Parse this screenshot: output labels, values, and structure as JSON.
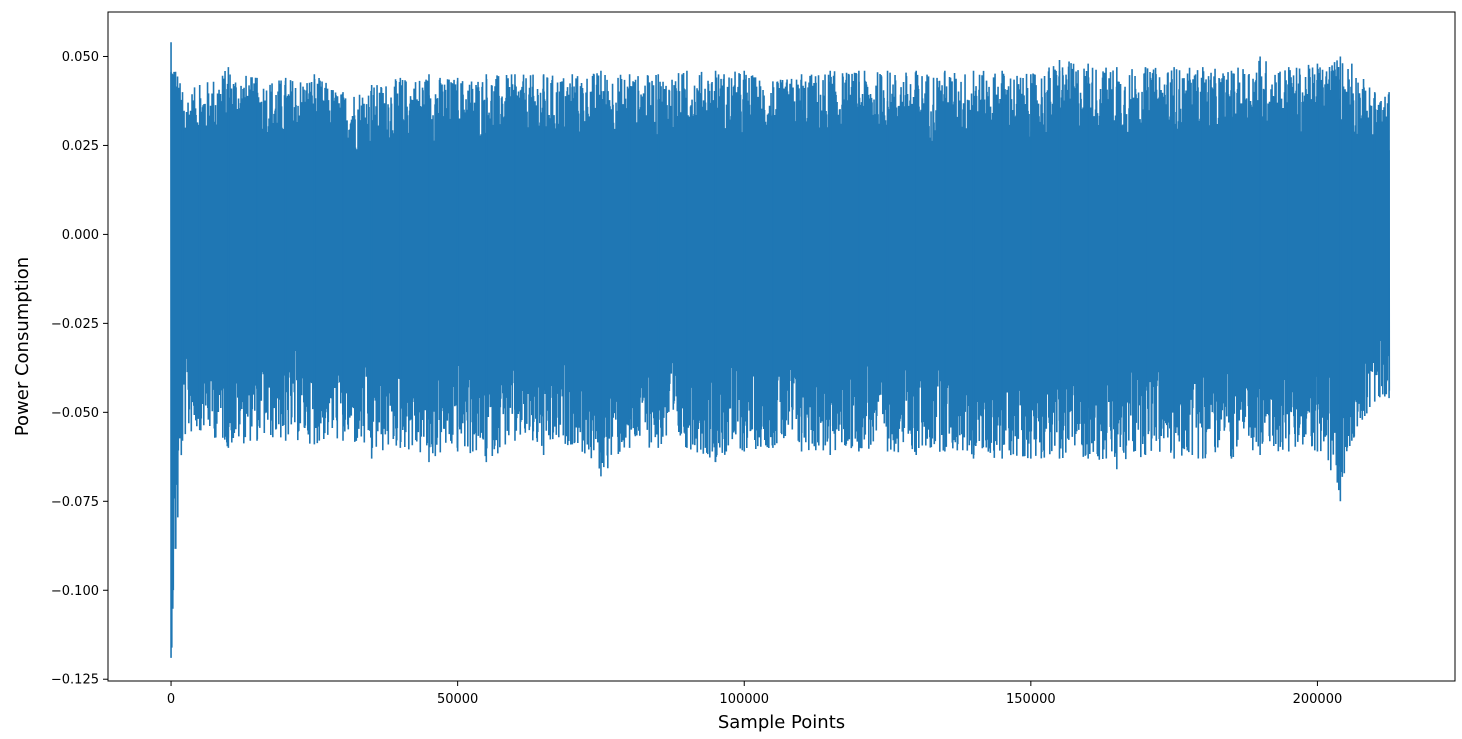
{
  "chart_data": {
    "type": "line",
    "title": "",
    "xlabel": "Sample Points",
    "ylabel": "Power Consumption",
    "xlim": [
      -11000,
      224000
    ],
    "ylim": [
      -0.1255,
      0.0625
    ],
    "x_ticks": [
      0,
      50000,
      100000,
      150000,
      200000
    ],
    "x_tick_labels": [
      "0",
      "50000",
      "100000",
      "150000",
      "200000"
    ],
    "y_ticks": [
      -0.125,
      -0.1,
      -0.075,
      -0.05,
      -0.025,
      0.0,
      0.025,
      0.05
    ],
    "y_tick_labels": [
      "−0.125",
      "−0.100",
      "−0.075",
      "−0.050",
      "−0.025",
      "0.000",
      "0.025",
      "0.050"
    ],
    "grid": false,
    "legend": "none",
    "series_color": "#1f77b4",
    "series": [
      {
        "x_range": [
          0,
          212500
        ],
        "envelope_x": [
          0,
          2000,
          5000,
          10000,
          15000,
          20000,
          25000,
          30000,
          35000,
          40000,
          45000,
          50000,
          55000,
          60000,
          65000,
          70000,
          75000,
          80000,
          85000,
          90000,
          95000,
          100000,
          105000,
          110000,
          115000,
          120000,
          125000,
          130000,
          135000,
          140000,
          145000,
          150000,
          155000,
          160000,
          165000,
          170000,
          175000,
          180000,
          185000,
          190000,
          195000,
          200000,
          204000,
          206000,
          210000,
          212500
        ],
        "envelope_max": [
          0.054,
          0.04,
          0.042,
          0.047,
          0.044,
          0.044,
          0.045,
          0.04,
          0.042,
          0.044,
          0.045,
          0.044,
          0.045,
          0.045,
          0.045,
          0.045,
          0.046,
          0.045,
          0.045,
          0.046,
          0.046,
          0.046,
          0.043,
          0.045,
          0.046,
          0.046,
          0.046,
          0.046,
          0.046,
          0.046,
          0.046,
          0.045,
          0.049,
          0.048,
          0.047,
          0.047,
          0.047,
          0.047,
          0.046,
          0.05,
          0.047,
          0.048,
          0.05,
          0.048,
          0.04,
          0.04
        ],
        "envelope_min": [
          -0.119,
          -0.058,
          -0.055,
          -0.06,
          -0.058,
          -0.058,
          -0.059,
          -0.058,
          -0.063,
          -0.06,
          -0.064,
          -0.061,
          -0.064,
          -0.058,
          -0.062,
          -0.059,
          -0.068,
          -0.06,
          -0.06,
          -0.06,
          -0.064,
          -0.061,
          -0.06,
          -0.061,
          -0.062,
          -0.061,
          -0.061,
          -0.062,
          -0.061,
          -0.063,
          -0.063,
          -0.063,
          -0.063,
          -0.063,
          -0.066,
          -0.062,
          -0.063,
          -0.063,
          -0.063,
          -0.062,
          -0.061,
          -0.061,
          -0.075,
          -0.058,
          -0.047,
          -0.046
        ]
      }
    ]
  }
}
